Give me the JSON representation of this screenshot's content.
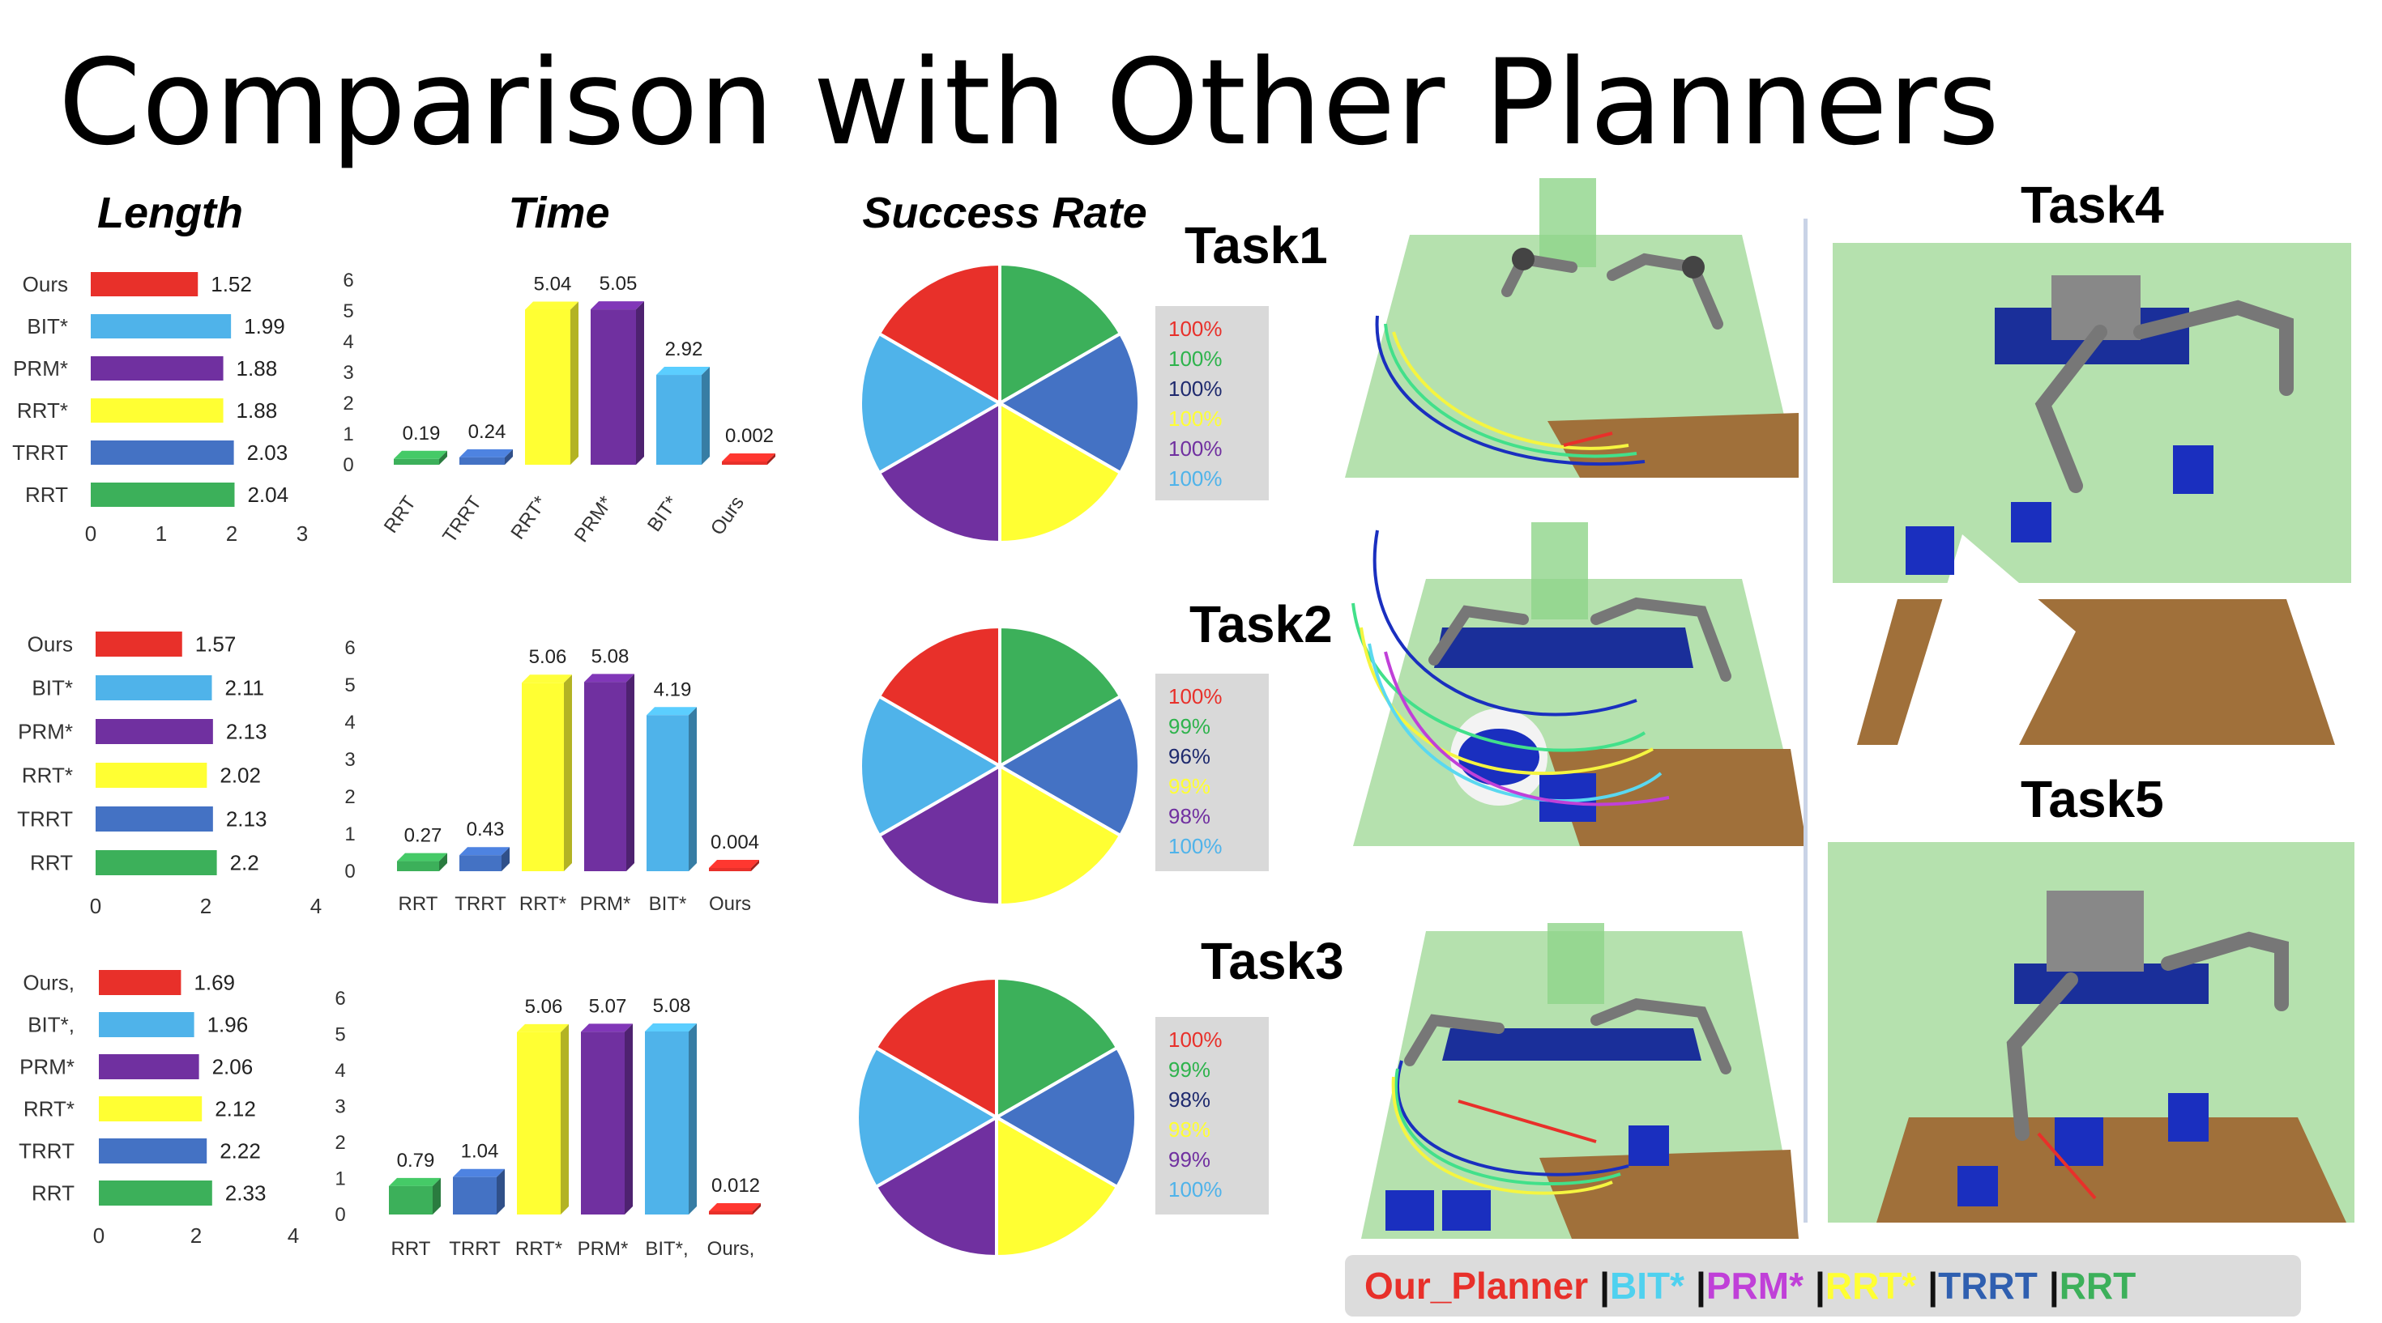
{
  "slide": {
    "title": "Comparison with Other Planners"
  },
  "columns": {
    "length": "Length",
    "time": "Time",
    "success": "Success Rate"
  },
  "tasks": {
    "t1": "Task1",
    "t2": "Task2",
    "t3": "Task3",
    "t4": "Task4",
    "t5": "Task5"
  },
  "colors": {
    "ours": "#e8302a",
    "bit": "#4fb3ea",
    "prm": "#7030a0",
    "rrt_star": "#ffff33",
    "trrt": "#4472c4",
    "rrt": "#3cb05a"
  },
  "chart_data": [
    {
      "type": "bar",
      "orientation": "horizontal",
      "title": "Length",
      "panel": "Task1",
      "categories": [
        "Ours",
        "BIT*",
        "PRM*",
        "RRT*",
        "TRRT",
        "RRT"
      ],
      "values": [
        1.52,
        1.99,
        1.88,
        1.88,
        2.03,
        2.04
      ],
      "value_labels": [
        "1.52",
        "1.99",
        "1.88",
        "1.88",
        "2.03",
        "2.04"
      ],
      "xlim": [
        0,
        3
      ],
      "xticks": [
        "0",
        "1",
        "2",
        "3"
      ]
    },
    {
      "type": "bar",
      "orientation": "horizontal",
      "panel": "Task2",
      "categories": [
        "Ours",
        "BIT*",
        "PRM*",
        "RRT*",
        "TRRT",
        "RRT"
      ],
      "values": [
        1.57,
        2.11,
        2.13,
        2.02,
        2.13,
        2.2
      ],
      "value_labels": [
        "1.57",
        "2.11",
        "2.13",
        "2.02",
        "2.13",
        "2.2"
      ],
      "xlim": [
        0,
        4
      ],
      "xticks": [
        "0",
        "2",
        "4"
      ]
    },
    {
      "type": "bar",
      "orientation": "horizontal",
      "panel": "Task3",
      "categories": [
        "Ours,",
        "BIT*,",
        "PRM*",
        "RRT*",
        "TRRT",
        "RRT"
      ],
      "values": [
        1.69,
        1.96,
        2.06,
        2.12,
        2.22,
        2.33
      ],
      "value_labels": [
        "1.69",
        "1.96",
        "2.06",
        "2.12",
        "2.22",
        "2.33"
      ],
      "xlim": [
        0,
        4
      ],
      "xticks": [
        "0",
        "2",
        "4"
      ]
    },
    {
      "type": "bar",
      "orientation": "vertical",
      "title": "Time",
      "panel": "Task1",
      "categories": [
        "RRT",
        "TRRT",
        "RRT*",
        "PRM*",
        "BIT*",
        "Ours"
      ],
      "values": [
        0.19,
        0.24,
        5.04,
        5.05,
        2.92,
        0.002
      ],
      "value_labels": [
        "0.19",
        "0.24",
        "5.04",
        "5.05",
        "2.92",
        "0.002"
      ],
      "ylim": [
        0,
        6
      ],
      "yticks": [
        "0",
        "1",
        "2",
        "3",
        "4",
        "5",
        "6"
      ],
      "rotated_labels": true
    },
    {
      "type": "bar",
      "orientation": "vertical",
      "panel": "Task2",
      "categories": [
        "RRT",
        "TRRT",
        "RRT*",
        "PRM*",
        "BIT*",
        "Ours"
      ],
      "values": [
        0.27,
        0.43,
        5.06,
        5.08,
        4.19,
        0.004
      ],
      "value_labels": [
        "0.27",
        "0.43",
        "5.06",
        "5.08",
        "4.19",
        "0.004"
      ],
      "ylim": [
        0,
        6
      ],
      "yticks": [
        "0",
        "1",
        "2",
        "3",
        "4",
        "5",
        "6"
      ],
      "rotated_labels": false
    },
    {
      "type": "bar",
      "orientation": "vertical",
      "panel": "Task3",
      "categories": [
        "RRT",
        "TRRT",
        "RRT*",
        "PRM*",
        "BIT*,",
        "Ours,"
      ],
      "values": [
        0.79,
        1.04,
        5.06,
        5.07,
        5.08,
        0.012
      ],
      "value_labels": [
        "0.79",
        "1.04",
        "5.06",
        "5.07",
        "5.08",
        "0.012"
      ],
      "ylim": [
        0,
        6
      ],
      "yticks": [
        "0",
        "1",
        "2",
        "3",
        "4",
        "5",
        "6"
      ],
      "rotated_labels": false
    },
    {
      "type": "pie",
      "title": "Success Rate",
      "panel": "Task1",
      "slices": [
        "ours",
        "rrt",
        "trrt",
        "rrt_star",
        "prm",
        "bit"
      ],
      "values": [
        1,
        1,
        1,
        1,
        1,
        1
      ],
      "rates": [
        "100%",
        "100%",
        "100%",
        "100%",
        "100%",
        "100%"
      ]
    },
    {
      "type": "pie",
      "panel": "Task2",
      "slices": [
        "ours",
        "rrt",
        "trrt",
        "rrt_star",
        "prm",
        "bit"
      ],
      "values": [
        1,
        1,
        1,
        1,
        1,
        1
      ],
      "rates": [
        "100%",
        "99%",
        "96%",
        "99%",
        "98%",
        "100%"
      ]
    },
    {
      "type": "pie",
      "panel": "Task3",
      "slices": [
        "ours",
        "rrt",
        "trrt",
        "rrt_star",
        "prm",
        "bit"
      ],
      "values": [
        1,
        1,
        1,
        1,
        1,
        1
      ],
      "rates": [
        "100%",
        "99%",
        "98%",
        "98%",
        "99%",
        "100%"
      ]
    }
  ],
  "rate_text_colors": [
    "#e8302a",
    "#2eb34c",
    "#1f2a6e",
    "#ffff33",
    "#7030a0",
    "#4fb3ea"
  ],
  "planner_legend": [
    {
      "label": "Our_Planner",
      "color": "#e8302a"
    },
    {
      "label": "BIT*",
      "color": "#4fd1ef"
    },
    {
      "label": "PRM*",
      "color": "#c040d8"
    },
    {
      "label": "RRT*",
      "color": "#ffff33"
    },
    {
      "label": "TRRT",
      "color": "#2f5fb0"
    },
    {
      "label": "RRT",
      "color": "#3cb05a"
    }
  ],
  "legend_separator": "|"
}
